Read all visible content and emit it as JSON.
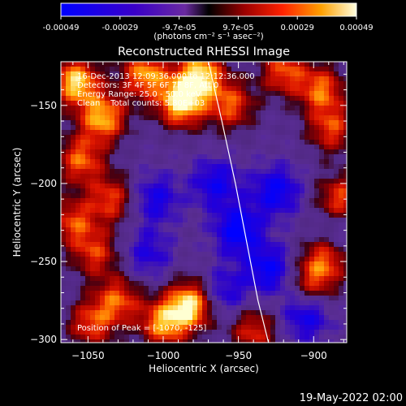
{
  "colorbar": {
    "ticks": [
      "-0.00049",
      "-0.00029",
      "-9.7e-05",
      "9.7e-05",
      "0.00029",
      "0.00049"
    ],
    "unit_label": "(photons cm⁻² s⁻¹ asec⁻²)"
  },
  "chart_data": {
    "type": "heatmap",
    "title": "Reconstructed RHESSI Image",
    "xlabel": "Heliocentric X (arcsec)",
    "ylabel": "Heliocentric Y (arcsec)",
    "xlim": [
      -1068,
      -878
    ],
    "ylim": [
      -302,
      -122
    ],
    "x_ticks": [
      -1050,
      -1000,
      -950,
      -900
    ],
    "y_ticks": [
      -300,
      -250,
      -200,
      -150
    ],
    "x_tick_labels": [
      "−1050",
      "−1000",
      "−950",
      "−900"
    ],
    "y_tick_labels": [
      "−300",
      "−250",
      "−200",
      "−150"
    ],
    "colorscale_range": [
      -0.00049,
      0.00049
    ],
    "annotations": [
      "16-Dec-2013 12:09:36.000 to 12:12:36.000",
      "Detectors: 3F 4F 5F 6F 7F 8F, Att 0",
      "Energy Range: 25.0 - 50.0 keV",
      "Clean    Total counts: 5.80E+03"
    ],
    "peak_label": "Position of Peak = [-1070, -125]",
    "peak_position": [
      -1070,
      -125
    ],
    "limb_curve": {
      "x": [
        -970,
        -961,
        -952,
        -944,
        -937,
        -930
      ],
      "y": [
        -122,
        -160,
        -200,
        -240,
        -275,
        -302
      ]
    },
    "hot_regions": [
      {
        "x": -1058,
        "y": -135,
        "level": 0.9
      },
      {
        "x": -1040,
        "y": -158,
        "level": 0.8
      },
      {
        "x": -1055,
        "y": -185,
        "level": 0.6
      },
      {
        "x": -1035,
        "y": -210,
        "level": 0.5
      },
      {
        "x": -1045,
        "y": -245,
        "level": 0.45
      },
      {
        "x": -1012,
        "y": -130,
        "level": 0.75
      },
      {
        "x": -988,
        "y": -148,
        "level": 1.0
      },
      {
        "x": -975,
        "y": -130,
        "level": 0.85
      },
      {
        "x": -955,
        "y": -150,
        "level": 0.55
      },
      {
        "x": -920,
        "y": -128,
        "level": 0.55
      },
      {
        "x": -895,
        "y": -140,
        "level": 0.6
      },
      {
        "x": -888,
        "y": -165,
        "level": 0.5
      },
      {
        "x": -882,
        "y": -210,
        "level": 0.55
      },
      {
        "x": -890,
        "y": -245,
        "level": 0.6
      },
      {
        "x": -900,
        "y": -262,
        "level": 0.45
      },
      {
        "x": -982,
        "y": -278,
        "level": 0.95
      },
      {
        "x": -1000,
        "y": -290,
        "level": 0.7
      },
      {
        "x": -1030,
        "y": -275,
        "level": 0.55
      },
      {
        "x": -1048,
        "y": -290,
        "level": 0.5
      },
      {
        "x": -940,
        "y": -295,
        "level": 0.45
      },
      {
        "x": -1060,
        "y": -225,
        "level": 0.5
      }
    ],
    "cold_regions": [
      {
        "x": -950,
        "y": -230,
        "level": -0.8
      },
      {
        "x": -925,
        "y": -205,
        "level": -0.7
      },
      {
        "x": -965,
        "y": -200,
        "level": -0.6
      },
      {
        "x": -905,
        "y": -285,
        "level": -0.6
      },
      {
        "x": -1005,
        "y": -210,
        "level": -0.55
      },
      {
        "x": -930,
        "y": -255,
        "level": -0.7
      },
      {
        "x": -885,
        "y": -235,
        "level": -0.5
      },
      {
        "x": -1010,
        "y": -245,
        "level": -0.45
      },
      {
        "x": -960,
        "y": -270,
        "level": -0.5
      }
    ]
  },
  "footer": {
    "timestamp": "19-May-2022 02:00"
  }
}
